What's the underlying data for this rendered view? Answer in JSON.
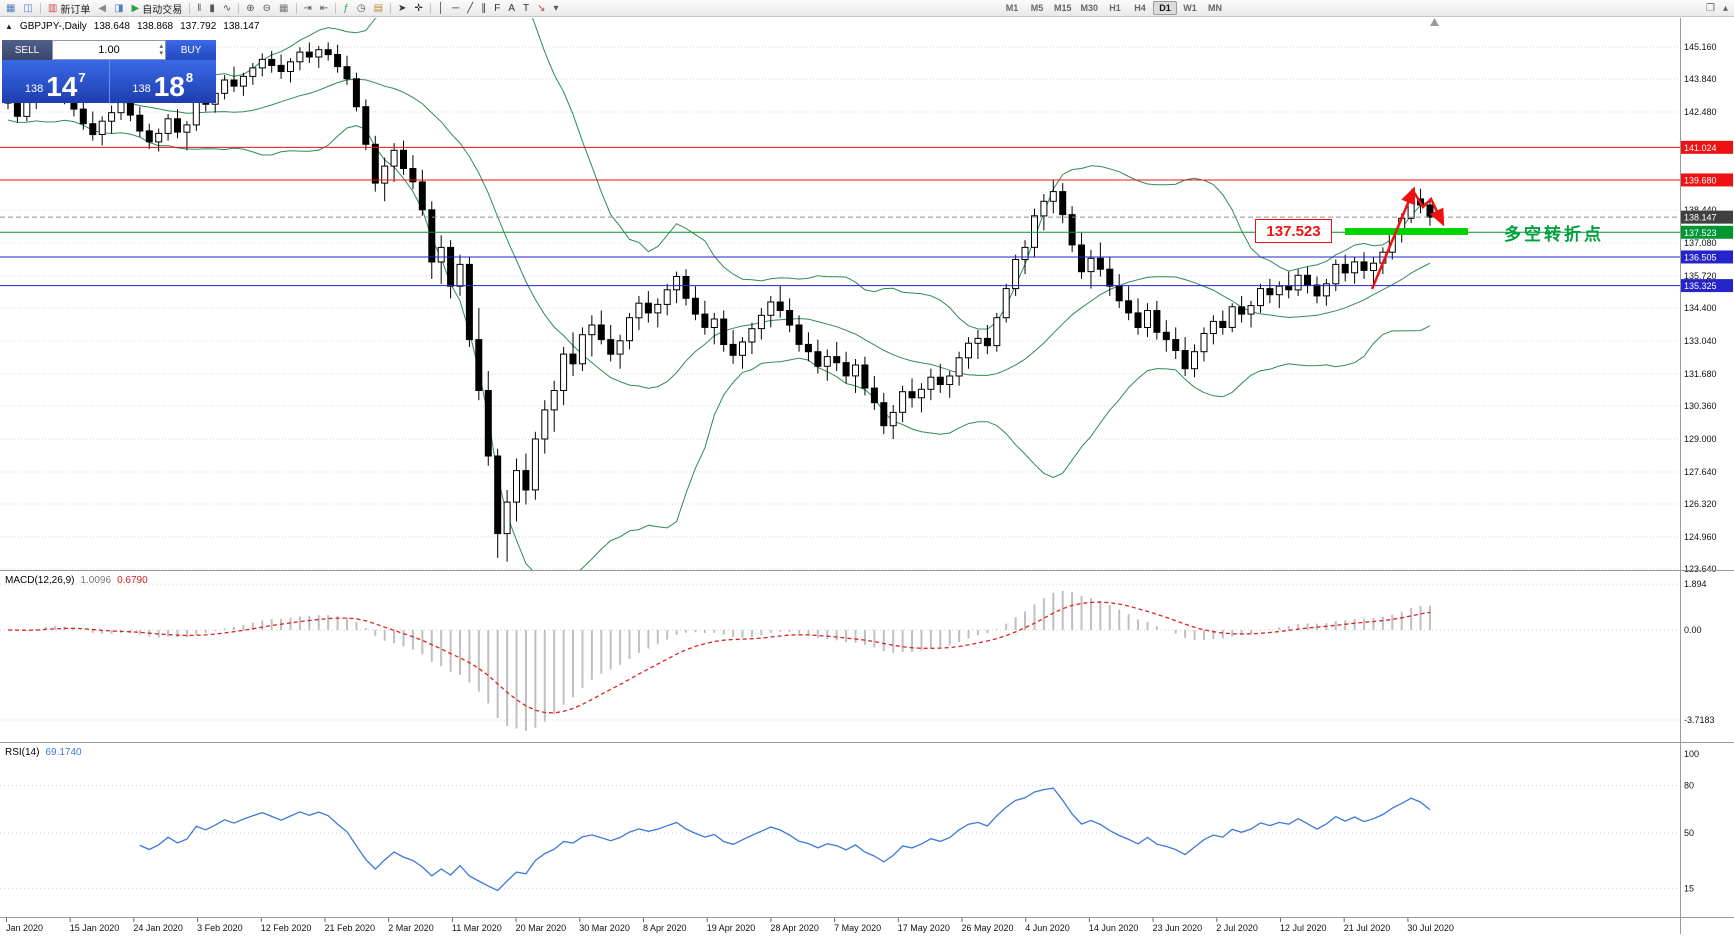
{
  "toolbar": {
    "items": [
      {
        "n": "charts-window-icon",
        "g": "▦",
        "c": "#4e7fc1"
      },
      {
        "n": "market-watch-icon",
        "g": "◫",
        "c": "#4e7fc1"
      },
      {
        "sep": true
      },
      {
        "n": "new-order-button",
        "icon": "new-order-icon",
        "g": "▥",
        "c": "#d24a43",
        "label": "新订单"
      },
      {
        "n": "sound-icon",
        "g": "◀",
        "c": "#8a8a8a"
      },
      {
        "n": "new-chart-icon",
        "g": "◨",
        "c": "#4e7fc1"
      },
      {
        "n": "auto-trading-button",
        "icon": "auto-trading-icon",
        "g": "▶",
        "c": "#2fa04a",
        "label": "自动交易"
      },
      {
        "sep": true
      },
      {
        "n": "bar-chart-mode-icon",
        "g": "‖",
        "c": "#555555"
      },
      {
        "n": "candlestick-mode-icon",
        "g": "▮",
        "c": "#555555"
      },
      {
        "n": "line-chart-mode-icon",
        "g": "∿",
        "c": "#555555"
      },
      {
        "sep": true
      },
      {
        "n": "zoom-in-icon",
        "g": "⊕",
        "c": "#555555"
      },
      {
        "n": "zoom-out-icon",
        "g": "⊖",
        "c": "#555555"
      },
      {
        "n": "tile-windows-icon",
        "g": "▦",
        "c": "#777777"
      },
      {
        "sep": true
      },
      {
        "n": "auto-scroll-icon",
        "g": "⇥",
        "c": "#555555"
      },
      {
        "n": "chart-shift-icon",
        "g": "⇤",
        "c": "#555555"
      },
      {
        "sep": true
      },
      {
        "n": "indicators-icon",
        "g": "ƒ",
        "c": "#2fa04a"
      },
      {
        "n": "periods-icon",
        "g": "◷",
        "c": "#555555"
      },
      {
        "n": "templates-icon",
        "g": "▤",
        "c": "#b78b3e"
      },
      {
        "sep": true
      },
      {
        "n": "cursor-icon",
        "g": "➤",
        "c": "#333333"
      },
      {
        "n": "crosshair-icon",
        "g": "✛",
        "c": "#333333"
      },
      {
        "sep": true
      },
      {
        "n": "vertical-line-icon",
        "g": "│",
        "c": "#333333"
      },
      {
        "n": "horizontal-line-icon",
        "g": "─",
        "c": "#333333"
      },
      {
        "n": "trendline-icon",
        "g": "╱",
        "c": "#333333"
      },
      {
        "n": "channel-icon",
        "g": "∥",
        "c": "#333333"
      },
      {
        "n": "fibonacci-icon",
        "g": "F",
        "c": "#333333"
      },
      {
        "n": "text-icon",
        "g": "A",
        "c": "#333333"
      },
      {
        "n": "label-icon",
        "g": "T",
        "c": "#333333"
      },
      {
        "n": "arrow-tools-icon",
        "g": "↘",
        "c": "#c04040"
      },
      {
        "n": "tools-dropdown-icon",
        "g": "▾",
        "c": "#555555"
      }
    ],
    "timeframes": [
      "M1",
      "M5",
      "M15",
      "M30",
      "H1",
      "H4",
      "D1",
      "W1",
      "MN"
    ],
    "active_timeframe": "D1",
    "right_items": [
      {
        "n": "layout-icon",
        "g": "❐",
        "c": "#666666"
      },
      {
        "n": "collapse-toolbar-icon",
        "g": "▴",
        "c": "#666666"
      }
    ]
  },
  "chart_header": {
    "collapse_glyph": "▲",
    "symbol_period": "GBPJPY-,Daily",
    "open": "138.648",
    "high": "138.868",
    "low": "137.792",
    "close": "138.147"
  },
  "one_click": {
    "sell_label": "SELL",
    "buy_label": "BUY",
    "volume": "1.00",
    "spinner_up_glyph": "▴",
    "spinner_down_glyph": "▾",
    "sell_price": {
      "prefix": "138",
      "big": "14",
      "sup": "7"
    },
    "buy_price": {
      "prefix": "138",
      "big": "18",
      "sup": "8"
    }
  },
  "price_axis": {
    "labels": [
      "145.160",
      "143.840",
      "142.480",
      "138.440",
      "137.080",
      "135.720",
      "134.400",
      "133.040",
      "131.680",
      "130.360",
      "129.000",
      "127.640",
      "126.320",
      "124.960",
      "123.640"
    ],
    "tags": [
      {
        "text": "141.024",
        "price": 141.024,
        "color": "#ee1111"
      },
      {
        "text": "139.680",
        "price": 139.68,
        "color": "#ee1111"
      },
      {
        "text": "138.147",
        "price": 138.147,
        "color": "#404040"
      },
      {
        "text": "137.523",
        "price": 137.523,
        "color": "#009632"
      },
      {
        "text": "136.505",
        "price": 136.505,
        "color": "#2424c8"
      },
      {
        "text": "135.325",
        "price": 135.325,
        "color": "#2424c8"
      }
    ]
  },
  "hlines": [
    {
      "price": 141.024,
      "color": "#ee1111",
      "style": "solid",
      "name": "resistance-line-141024"
    },
    {
      "price": 139.68,
      "color": "#ee1111",
      "style": "solid",
      "name": "resistance-line-139680"
    },
    {
      "price": 137.523,
      "color": "#009632",
      "style": "solid",
      "name": "pivot-line-137523"
    },
    {
      "price": 136.505,
      "color": "#2424c8",
      "style": "solid",
      "name": "support-line-136505"
    },
    {
      "price": 135.325,
      "color": "#2424c8",
      "style": "solid",
      "name": "support-line-135325"
    },
    {
      "price": 138.147,
      "color": "#909090",
      "style": "dashed",
      "name": "bid-price-line"
    }
  ],
  "annotations": {
    "price_box": {
      "text": "137.523",
      "color": "#ee1111"
    },
    "support_bar": {
      "color": "#00d400"
    },
    "note": {
      "text": "多空转折点",
      "color": "#00a03c"
    },
    "arrow_color": "#ee1111"
  },
  "indicators": {
    "macd": {
      "name": "MACD(12,26,9)",
      "value": "1.0096",
      "signal": "0.6790",
      "axis_labels": [
        "1.894",
        "0.00",
        "-3.7183"
      ],
      "histogram_color": "#bfbfbf",
      "signal_color": "#dd2222"
    },
    "rsi": {
      "name": "RSI(14)",
      "value": "69.1740",
      "axis_labels": [
        "100",
        "80",
        "50",
        "15"
      ],
      "line_color": "#3c78dc"
    }
  },
  "date_axis": {
    "labels": [
      "Jan 2020",
      "15 Jan 2020",
      "24 Jan 2020",
      "3 Feb 2020",
      "12 Feb 2020",
      "21 Feb 2020",
      "2 Mar 2020",
      "11 Mar 2020",
      "20 Mar 2020",
      "30 Mar 2020",
      "8 Apr 2020",
      "19 Apr 2020",
      "28 Apr 2020",
      "7 May 2020",
      "17 May 2020",
      "26 May 2020",
      "4 Jun 2020",
      "14 Jun 2020",
      "23 Jun 2020",
      "2 Jul 2020",
      "12 Jul 2020",
      "21 Jul 2020",
      "30 Jul 2020"
    ]
  },
  "chart_data": {
    "type": "candlestick",
    "symbol": "GBPJPY-",
    "period": "Daily",
    "price_range": [
      123.64,
      146.36
    ],
    "bollinger": {
      "period": 20,
      "deviation": 2,
      "color": "#2e8b57"
    },
    "ohlc_format": [
      "open",
      "high",
      "low",
      "close"
    ],
    "candles": [
      [
        143.45,
        143.95,
        142.6,
        142.85
      ],
      [
        142.85,
        143.3,
        142.05,
        142.3
      ],
      [
        142.3,
        143.1,
        142.1,
        142.95
      ],
      [
        142.95,
        143.75,
        142.6,
        143.55
      ],
      [
        143.55,
        144.3,
        143.2,
        144.05
      ],
      [
        144.05,
        144.45,
        143.35,
        143.6
      ],
      [
        143.6,
        143.9,
        142.8,
        143.05
      ],
      [
        143.05,
        143.4,
        142.3,
        142.6
      ],
      [
        142.6,
        142.95,
        141.75,
        142.0
      ],
      [
        142.0,
        142.5,
        141.3,
        141.55
      ],
      [
        141.55,
        142.3,
        141.1,
        142.1
      ],
      [
        142.1,
        142.75,
        141.6,
        142.45
      ],
      [
        142.45,
        143.2,
        142.15,
        142.9
      ],
      [
        142.9,
        143.35,
        142.1,
        142.35
      ],
      [
        142.35,
        142.7,
        141.45,
        141.7
      ],
      [
        141.7,
        142.0,
        140.95,
        141.25
      ],
      [
        141.25,
        141.8,
        140.85,
        141.6
      ],
      [
        141.6,
        142.4,
        141.3,
        142.2
      ],
      [
        142.2,
        142.6,
        141.4,
        141.65
      ],
      [
        141.65,
        142.1,
        140.9,
        141.95
      ],
      [
        141.95,
        143.3,
        141.7,
        143.1
      ],
      [
        143.1,
        143.55,
        142.5,
        142.8
      ],
      [
        142.8,
        143.4,
        142.45,
        143.25
      ],
      [
        143.25,
        144.0,
        143.0,
        143.8
      ],
      [
        143.8,
        144.35,
        143.3,
        143.55
      ],
      [
        143.55,
        144.1,
        143.15,
        143.95
      ],
      [
        143.95,
        144.5,
        143.6,
        144.3
      ],
      [
        144.3,
        144.9,
        143.95,
        144.65
      ],
      [
        144.65,
        145.0,
        144.1,
        144.4
      ],
      [
        144.4,
        144.85,
        143.85,
        144.15
      ],
      [
        144.15,
        144.7,
        143.7,
        144.55
      ],
      [
        144.55,
        145.15,
        144.2,
        144.95
      ],
      [
        144.95,
        145.35,
        144.5,
        144.75
      ],
      [
        144.75,
        145.2,
        144.3,
        145.05
      ],
      [
        145.05,
        145.35,
        144.6,
        144.85
      ],
      [
        144.85,
        145.25,
        144.1,
        144.35
      ],
      [
        144.35,
        144.8,
        143.6,
        143.85
      ],
      [
        143.85,
        144.1,
        142.5,
        142.7
      ],
      [
        142.7,
        143.0,
        140.9,
        141.15
      ],
      [
        141.15,
        141.5,
        139.2,
        139.55
      ],
      [
        139.55,
        140.6,
        138.8,
        140.25
      ],
      [
        140.25,
        141.2,
        139.6,
        140.9
      ],
      [
        140.9,
        141.3,
        139.9,
        140.15
      ],
      [
        140.15,
        140.7,
        139.3,
        139.6
      ],
      [
        139.6,
        140.1,
        138.2,
        138.45
      ],
      [
        138.45,
        138.8,
        135.6,
        136.3
      ],
      [
        136.3,
        137.4,
        135.4,
        136.9
      ],
      [
        136.9,
        137.2,
        134.8,
        135.3
      ],
      [
        135.3,
        136.6,
        134.9,
        136.2
      ],
      [
        136.2,
        136.5,
        132.8,
        133.1
      ],
      [
        133.1,
        134.4,
        130.6,
        131.0
      ],
      [
        131.0,
        131.8,
        127.9,
        128.3
      ],
      [
        128.3,
        128.6,
        124.1,
        125.1
      ],
      [
        125.1,
        126.9,
        123.95,
        126.4
      ],
      [
        126.4,
        128.2,
        125.6,
        127.7
      ],
      [
        127.7,
        128.4,
        126.3,
        126.9
      ],
      [
        126.9,
        129.3,
        126.5,
        129.0
      ],
      [
        129.0,
        130.6,
        128.4,
        130.2
      ],
      [
        130.2,
        131.4,
        129.3,
        131.0
      ],
      [
        131.0,
        132.8,
        130.4,
        132.5
      ],
      [
        132.5,
        133.4,
        131.6,
        132.1
      ],
      [
        132.1,
        133.6,
        131.8,
        133.3
      ],
      [
        133.3,
        134.1,
        132.4,
        133.7
      ],
      [
        133.7,
        134.3,
        132.9,
        133.1
      ],
      [
        133.1,
        133.7,
        132.2,
        132.5
      ],
      [
        132.5,
        133.3,
        131.9,
        133.05
      ],
      [
        133.05,
        134.2,
        132.7,
        134.0
      ],
      [
        134.0,
        134.9,
        133.5,
        134.6
      ],
      [
        134.6,
        135.1,
        133.8,
        134.2
      ],
      [
        134.2,
        134.8,
        133.6,
        134.55
      ],
      [
        134.55,
        135.4,
        134.1,
        135.15
      ],
      [
        135.15,
        135.9,
        134.6,
        135.7
      ],
      [
        135.7,
        136.0,
        134.5,
        134.8
      ],
      [
        134.8,
        135.3,
        133.9,
        134.15
      ],
      [
        134.15,
        134.7,
        133.3,
        133.6
      ],
      [
        133.6,
        134.2,
        132.9,
        133.95
      ],
      [
        133.95,
        134.3,
        132.6,
        132.9
      ],
      [
        132.9,
        133.5,
        132.1,
        132.45
      ],
      [
        132.45,
        133.2,
        131.9,
        133.0
      ],
      [
        133.0,
        133.8,
        132.5,
        133.55
      ],
      [
        133.55,
        134.4,
        133.1,
        134.1
      ],
      [
        134.1,
        134.9,
        133.6,
        134.65
      ],
      [
        134.65,
        135.3,
        134.0,
        134.3
      ],
      [
        134.3,
        134.8,
        133.4,
        133.7
      ],
      [
        133.7,
        134.1,
        132.6,
        132.9
      ],
      [
        132.9,
        133.4,
        132.2,
        132.6
      ],
      [
        132.6,
        133.1,
        131.7,
        132.0
      ],
      [
        132.0,
        132.7,
        131.4,
        132.4
      ],
      [
        132.4,
        133.0,
        131.8,
        132.15
      ],
      [
        132.15,
        132.6,
        131.3,
        131.6
      ],
      [
        131.6,
        132.3,
        130.9,
        132.05
      ],
      [
        132.05,
        132.4,
        130.8,
        131.1
      ],
      [
        131.1,
        131.6,
        130.2,
        130.5
      ],
      [
        130.5,
        130.9,
        129.2,
        129.55
      ],
      [
        129.55,
        130.4,
        129.0,
        130.1
      ],
      [
        130.1,
        131.2,
        129.7,
        130.95
      ],
      [
        130.95,
        131.5,
        130.3,
        130.7
      ],
      [
        130.7,
        131.3,
        130.1,
        131.05
      ],
      [
        131.05,
        131.9,
        130.6,
        131.55
      ],
      [
        131.55,
        132.1,
        130.9,
        131.25
      ],
      [
        131.25,
        131.8,
        130.7,
        131.6
      ],
      [
        131.6,
        132.6,
        131.2,
        132.35
      ],
      [
        132.35,
        133.2,
        131.9,
        132.95
      ],
      [
        132.95,
        133.5,
        132.3,
        133.15
      ],
      [
        133.15,
        133.7,
        132.5,
        132.85
      ],
      [
        132.85,
        134.2,
        132.6,
        134.0
      ],
      [
        134.0,
        135.4,
        133.8,
        135.2
      ],
      [
        135.2,
        136.6,
        134.9,
        136.4
      ],
      [
        136.4,
        137.2,
        135.8,
        136.9
      ],
      [
        136.9,
        138.5,
        136.5,
        138.2
      ],
      [
        138.2,
        139.1,
        137.6,
        138.8
      ],
      [
        138.8,
        139.7,
        138.3,
        139.2
      ],
      [
        139.2,
        139.55,
        137.9,
        138.25
      ],
      [
        138.25,
        138.6,
        136.7,
        137.0
      ],
      [
        137.0,
        137.5,
        135.6,
        135.9
      ],
      [
        135.9,
        136.8,
        135.2,
        136.45
      ],
      [
        136.45,
        137.1,
        135.7,
        136.0
      ],
      [
        136.0,
        136.5,
        134.9,
        135.3
      ],
      [
        135.3,
        135.8,
        134.4,
        134.7
      ],
      [
        134.7,
        135.3,
        133.9,
        134.2
      ],
      [
        134.2,
        134.8,
        133.3,
        133.6
      ],
      [
        133.6,
        134.6,
        133.2,
        134.3
      ],
      [
        134.3,
        134.7,
        133.1,
        133.4
      ],
      [
        133.4,
        133.9,
        132.6,
        133.1
      ],
      [
        133.1,
        133.6,
        132.3,
        132.65
      ],
      [
        132.65,
        133.2,
        131.6,
        131.9
      ],
      [
        131.9,
        132.9,
        131.55,
        132.6
      ],
      [
        132.6,
        133.6,
        132.2,
        133.35
      ],
      [
        133.35,
        134.1,
        132.9,
        133.85
      ],
      [
        133.85,
        134.3,
        133.3,
        133.6
      ],
      [
        133.6,
        134.6,
        133.4,
        134.45
      ],
      [
        134.45,
        134.9,
        133.8,
        134.15
      ],
      [
        134.15,
        134.7,
        133.6,
        134.5
      ],
      [
        134.5,
        135.4,
        134.2,
        135.2
      ],
      [
        135.2,
        135.6,
        134.6,
        134.95
      ],
      [
        134.95,
        135.5,
        134.4,
        135.3
      ],
      [
        135.3,
        135.9,
        134.8,
        135.15
      ],
      [
        135.15,
        136.0,
        134.9,
        135.75
      ],
      [
        135.75,
        136.1,
        135.0,
        135.35
      ],
      [
        135.35,
        135.7,
        134.6,
        134.9
      ],
      [
        134.9,
        135.6,
        134.5,
        135.4
      ],
      [
        135.4,
        136.4,
        135.1,
        136.2
      ],
      [
        136.2,
        136.6,
        135.5,
        135.85
      ],
      [
        135.85,
        136.5,
        135.4,
        136.3
      ],
      [
        136.3,
        136.7,
        135.6,
        135.95
      ],
      [
        135.95,
        136.5,
        135.3,
        136.25
      ],
      [
        136.25,
        136.9,
        135.8,
        136.7
      ],
      [
        136.7,
        137.6,
        136.4,
        137.45
      ],
      [
        137.45,
        138.3,
        137.1,
        138.1
      ],
      [
        138.1,
        139.05,
        137.9,
        138.9
      ],
      [
        138.9,
        139.32,
        138.3,
        138.65
      ],
      [
        138.648,
        138.868,
        137.792,
        138.147
      ]
    ]
  }
}
